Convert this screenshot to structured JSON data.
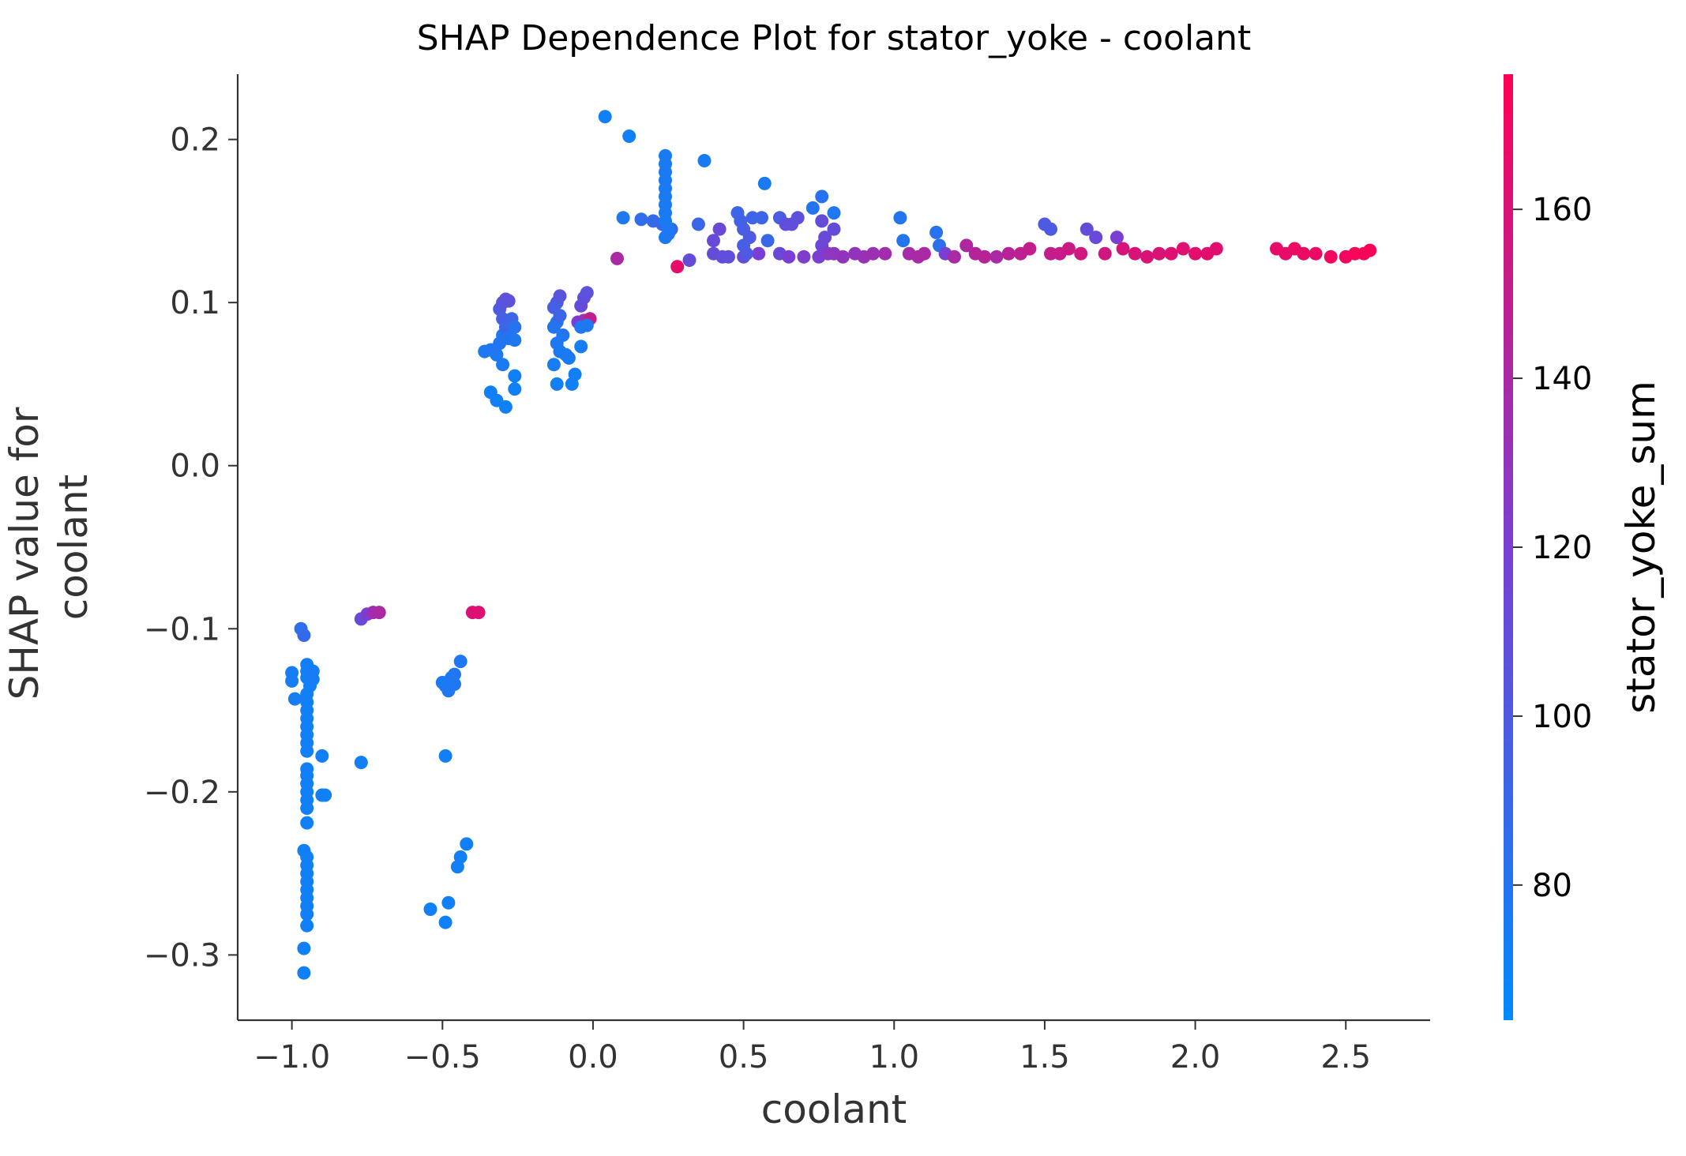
{
  "chart_data": {
    "type": "scatter",
    "title": "SHAP Dependence Plot for stator_yoke - coolant",
    "xlabel": "coolant",
    "ylabel_lines": [
      "SHAP value for",
      "coolant"
    ],
    "xlim": [
      -1.18,
      2.78
    ],
    "ylim": [
      -0.34,
      0.24
    ],
    "xticks": [
      -1.0,
      -0.5,
      0.0,
      0.5,
      1.0,
      1.5,
      2.0,
      2.5
    ],
    "xtick_labels": [
      "−1.0",
      "−0.5",
      "0.0",
      "0.5",
      "1.0",
      "1.5",
      "2.0",
      "2.5"
    ],
    "yticks": [
      -0.3,
      -0.2,
      -0.1,
      0.0,
      0.1,
      0.2
    ],
    "ytick_labels": [
      "−0.3",
      "−0.2",
      "−0.1",
      "0.0",
      "0.1",
      "0.2"
    ],
    "grid": false,
    "colorbar": {
      "label": "stator_yoke_sum",
      "range": [
        64,
        176
      ],
      "ticks": [
        80,
        100,
        120,
        140,
        160
      ],
      "tick_labels": [
        "80",
        "100",
        "120",
        "140",
        "160"
      ],
      "color_low": "#008afb",
      "color_mid": "#7a3fd2",
      "color_high": "#ff0052"
    },
    "points": [
      [
        -0.97,
        -0.1,
        85
      ],
      [
        -0.96,
        -0.104,
        88
      ],
      [
        -0.95,
        -0.122,
        72
      ],
      [
        -0.95,
        -0.126,
        72
      ],
      [
        -0.95,
        -0.13,
        72
      ],
      [
        -0.94,
        -0.135,
        72
      ],
      [
        -0.95,
        -0.14,
        72
      ],
      [
        -0.95,
        -0.145,
        72
      ],
      [
        -0.95,
        -0.15,
        72
      ],
      [
        -0.95,
        -0.155,
        72
      ],
      [
        -0.95,
        -0.16,
        72
      ],
      [
        -0.95,
        -0.165,
        72
      ],
      [
        -0.95,
        -0.17,
        72
      ],
      [
        -0.95,
        -0.175,
        72
      ],
      [
        -0.95,
        -0.186,
        72
      ],
      [
        -0.95,
        -0.19,
        72
      ],
      [
        -0.95,
        -0.195,
        72
      ],
      [
        -0.95,
        -0.2,
        72
      ],
      [
        -0.95,
        -0.205,
        72
      ],
      [
        -0.95,
        -0.21,
        72
      ],
      [
        -0.95,
        -0.219,
        72
      ],
      [
        -0.96,
        -0.236,
        72
      ],
      [
        -0.95,
        -0.24,
        72
      ],
      [
        -0.95,
        -0.245,
        72
      ],
      [
        -0.95,
        -0.25,
        72
      ],
      [
        -0.95,
        -0.255,
        72
      ],
      [
        -0.95,
        -0.26,
        72
      ],
      [
        -0.95,
        -0.265,
        72
      ],
      [
        -0.95,
        -0.27,
        72
      ],
      [
        -0.95,
        -0.275,
        72
      ],
      [
        -0.95,
        -0.282,
        72
      ],
      [
        -0.96,
        -0.296,
        72
      ],
      [
        -0.96,
        -0.311,
        72
      ],
      [
        -1.0,
        -0.127,
        74
      ],
      [
        -1.0,
        -0.132,
        74
      ],
      [
        -0.99,
        -0.143,
        74
      ],
      [
        -0.93,
        -0.126,
        74
      ],
      [
        -0.93,
        -0.131,
        74
      ],
      [
        -0.9,
        -0.178,
        72
      ],
      [
        -0.9,
        -0.202,
        72
      ],
      [
        -0.89,
        -0.202,
        72
      ],
      [
        -0.77,
        -0.182,
        72
      ],
      [
        -0.77,
        -0.094,
        112
      ],
      [
        -0.75,
        -0.091,
        120
      ],
      [
        -0.73,
        -0.09,
        135
      ],
      [
        -0.71,
        -0.09,
        140
      ],
      [
        -0.5,
        -0.133,
        76
      ],
      [
        -0.49,
        -0.135,
        76
      ],
      [
        -0.48,
        -0.138,
        78
      ],
      [
        -0.47,
        -0.13,
        78
      ],
      [
        -0.46,
        -0.128,
        78
      ],
      [
        -0.46,
        -0.134,
        78
      ],
      [
        -0.44,
        -0.12,
        78
      ],
      [
        -0.49,
        -0.178,
        72
      ],
      [
        -0.42,
        -0.232,
        72
      ],
      [
        -0.44,
        -0.24,
        72
      ],
      [
        -0.45,
        -0.246,
        72
      ],
      [
        -0.48,
        -0.268,
        72
      ],
      [
        -0.54,
        -0.272,
        72
      ],
      [
        -0.49,
        -0.28,
        72
      ],
      [
        -0.4,
        -0.09,
        160
      ],
      [
        -0.38,
        -0.09,
        162
      ],
      [
        -0.36,
        0.07,
        78
      ],
      [
        -0.34,
        0.071,
        78
      ],
      [
        -0.32,
        0.068,
        78
      ],
      [
        -0.31,
        0.075,
        80
      ],
      [
        -0.3,
        0.08,
        80
      ],
      [
        -0.31,
        0.096,
        100
      ],
      [
        -0.3,
        0.1,
        104
      ],
      [
        -0.29,
        0.102,
        106
      ],
      [
        -0.28,
        0.101,
        106
      ],
      [
        -0.3,
        0.09,
        96
      ],
      [
        -0.29,
        0.085,
        90
      ],
      [
        -0.27,
        0.09,
        92
      ],
      [
        -0.28,
        0.078,
        80
      ],
      [
        -0.26,
        0.085,
        82
      ],
      [
        -0.3,
        0.062,
        76
      ],
      [
        -0.26,
        0.077,
        78
      ],
      [
        -0.34,
        0.045,
        72
      ],
      [
        -0.32,
        0.04,
        72
      ],
      [
        -0.29,
        0.036,
        72
      ],
      [
        -0.26,
        0.055,
        72
      ],
      [
        -0.26,
        0.047,
        72
      ],
      [
        -0.13,
        0.085,
        80
      ],
      [
        -0.12,
        0.088,
        82
      ],
      [
        -0.11,
        0.092,
        90
      ],
      [
        -0.12,
        0.1,
        100
      ],
      [
        -0.11,
        0.104,
        104
      ],
      [
        -0.13,
        0.097,
        96
      ],
      [
        -0.1,
        0.08,
        80
      ],
      [
        -0.12,
        0.075,
        78
      ],
      [
        -0.09,
        0.068,
        76
      ],
      [
        -0.08,
        0.066,
        76
      ],
      [
        -0.11,
        0.07,
        76
      ],
      [
        -0.13,
        0.062,
        74
      ],
      [
        -0.12,
        0.05,
        72
      ],
      [
        -0.07,
        0.05,
        72
      ],
      [
        -0.06,
        0.056,
        72
      ],
      [
        -0.04,
        0.073,
        74
      ],
      [
        -0.05,
        0.088,
        120
      ],
      [
        -0.03,
        0.089,
        130
      ],
      [
        -0.01,
        0.09,
        150
      ],
      [
        -0.04,
        0.098,
        110
      ],
      [
        -0.03,
        0.103,
        108
      ],
      [
        -0.02,
        0.106,
        106
      ],
      [
        -0.04,
        0.085,
        78
      ],
      [
        -0.02,
        0.086,
        78
      ],
      [
        0.04,
        0.214,
        72
      ],
      [
        0.12,
        0.202,
        72
      ],
      [
        0.1,
        0.152,
        78
      ],
      [
        0.08,
        0.127,
        140
      ],
      [
        0.16,
        0.151,
        86
      ],
      [
        0.2,
        0.15,
        88
      ],
      [
        0.23,
        0.148,
        90
      ],
      [
        0.26,
        0.145,
        92
      ],
      [
        0.28,
        0.122,
        165
      ],
      [
        0.32,
        0.126,
        110
      ],
      [
        0.35,
        0.148,
        90
      ],
      [
        0.37,
        0.187,
        76
      ],
      [
        0.24,
        0.19,
        76
      ],
      [
        0.24,
        0.185,
        76
      ],
      [
        0.24,
        0.18,
        76
      ],
      [
        0.24,
        0.175,
        76
      ],
      [
        0.24,
        0.17,
        76
      ],
      [
        0.24,
        0.165,
        76
      ],
      [
        0.24,
        0.16,
        76
      ],
      [
        0.24,
        0.155,
        76
      ],
      [
        0.24,
        0.15,
        76
      ],
      [
        0.25,
        0.145,
        76
      ],
      [
        0.24,
        0.14,
        76
      ],
      [
        0.25,
        0.142,
        78
      ],
      [
        0.4,
        0.138,
        112
      ],
      [
        0.42,
        0.145,
        112
      ],
      [
        0.4,
        0.13,
        110
      ],
      [
        0.43,
        0.128,
        108
      ],
      [
        0.45,
        0.128,
        108
      ],
      [
        0.5,
        0.128,
        110
      ],
      [
        0.55,
        0.13,
        120
      ],
      [
        0.58,
        0.138,
        90
      ],
      [
        0.48,
        0.155,
        92
      ],
      [
        0.49,
        0.15,
        94
      ],
      [
        0.5,
        0.145,
        96
      ],
      [
        0.52,
        0.14,
        100
      ],
      [
        0.5,
        0.135,
        96
      ],
      [
        0.51,
        0.13,
        100
      ],
      [
        0.53,
        0.152,
        92
      ],
      [
        0.56,
        0.152,
        92
      ],
      [
        0.57,
        0.173,
        76
      ],
      [
        0.62,
        0.152,
        98
      ],
      [
        0.64,
        0.148,
        108
      ],
      [
        0.66,
        0.148,
        108
      ],
      [
        0.68,
        0.152,
        108
      ],
      [
        0.62,
        0.13,
        112
      ],
      [
        0.65,
        0.128,
        120
      ],
      [
        0.7,
        0.128,
        122
      ],
      [
        0.73,
        0.158,
        80
      ],
      [
        0.76,
        0.165,
        82
      ],
      [
        0.76,
        0.15,
        110
      ],
      [
        0.77,
        0.14,
        112
      ],
      [
        0.76,
        0.135,
        114
      ],
      [
        0.75,
        0.128,
        120
      ],
      [
        0.78,
        0.13,
        125
      ],
      [
        0.8,
        0.155,
        78
      ],
      [
        0.8,
        0.145,
        110
      ],
      [
        0.8,
        0.13,
        128
      ],
      [
        0.83,
        0.128,
        130
      ],
      [
        0.87,
        0.13,
        130
      ],
      [
        0.9,
        0.128,
        132
      ],
      [
        0.93,
        0.13,
        134
      ],
      [
        0.97,
        0.13,
        136
      ],
      [
        1.02,
        0.152,
        80
      ],
      [
        1.03,
        0.138,
        80
      ],
      [
        1.05,
        0.13,
        138
      ],
      [
        1.08,
        0.128,
        140
      ],
      [
        1.1,
        0.13,
        140
      ],
      [
        1.14,
        0.143,
        82
      ],
      [
        1.15,
        0.135,
        84
      ],
      [
        1.17,
        0.13,
        120
      ],
      [
        1.2,
        0.128,
        140
      ],
      [
        1.24,
        0.135,
        142
      ],
      [
        1.27,
        0.13,
        144
      ],
      [
        1.3,
        0.128,
        146
      ],
      [
        1.34,
        0.128,
        140
      ],
      [
        1.38,
        0.13,
        146
      ],
      [
        1.42,
        0.13,
        148
      ],
      [
        1.45,
        0.133,
        150
      ],
      [
        1.5,
        0.148,
        100
      ],
      [
        1.52,
        0.145,
        100
      ],
      [
        1.52,
        0.13,
        150
      ],
      [
        1.55,
        0.13,
        152
      ],
      [
        1.58,
        0.133,
        154
      ],
      [
        1.62,
        0.13,
        156
      ],
      [
        1.64,
        0.145,
        110
      ],
      [
        1.67,
        0.14,
        112
      ],
      [
        1.7,
        0.13,
        156
      ],
      [
        1.74,
        0.14,
        120
      ],
      [
        1.76,
        0.133,
        158
      ],
      [
        1.8,
        0.13,
        160
      ],
      [
        1.84,
        0.128,
        160
      ],
      [
        1.88,
        0.13,
        160
      ],
      [
        1.92,
        0.13,
        162
      ],
      [
        1.96,
        0.133,
        162
      ],
      [
        2.0,
        0.13,
        164
      ],
      [
        2.04,
        0.13,
        164
      ],
      [
        2.07,
        0.133,
        164
      ],
      [
        2.27,
        0.133,
        166
      ],
      [
        2.3,
        0.13,
        166
      ],
      [
        2.33,
        0.133,
        168
      ],
      [
        2.36,
        0.13,
        168
      ],
      [
        2.4,
        0.13,
        168
      ],
      [
        2.45,
        0.128,
        170
      ],
      [
        2.5,
        0.128,
        170
      ],
      [
        2.53,
        0.13,
        172
      ],
      [
        2.56,
        0.13,
        172
      ],
      [
        2.58,
        0.132,
        174
      ]
    ]
  }
}
